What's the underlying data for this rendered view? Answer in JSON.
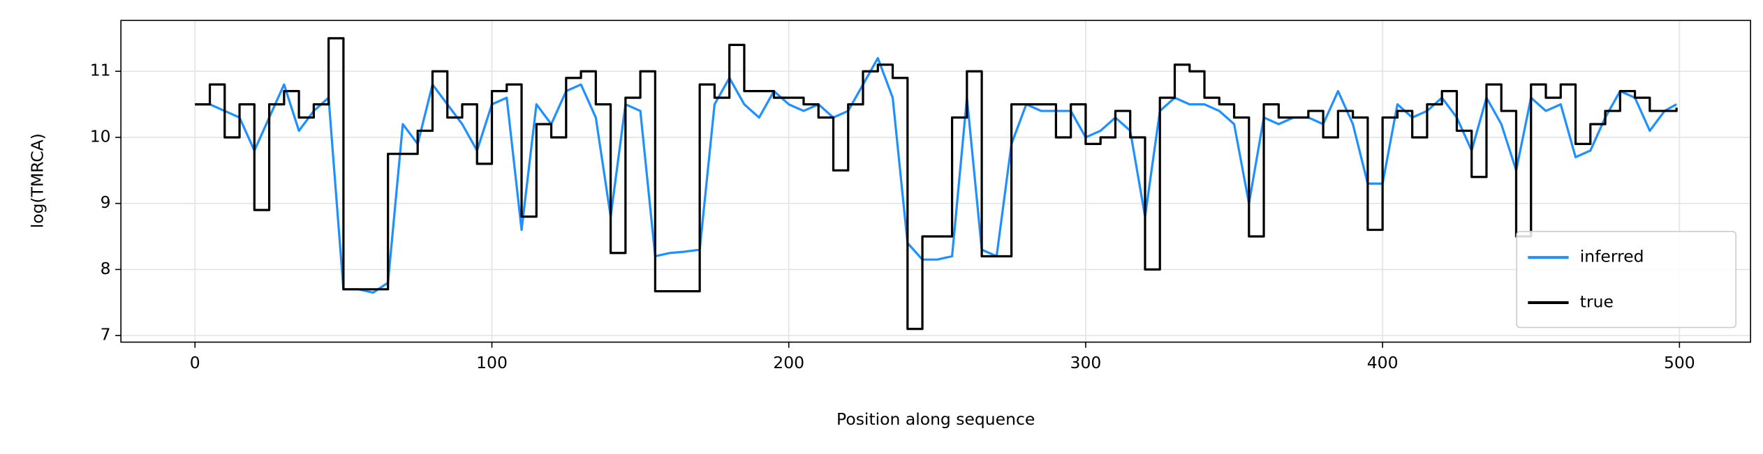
{
  "chart_data": {
    "type": "line",
    "x_label": "Position along sequence",
    "y_label": "log(TMRCA)",
    "xlim": [
      -24.95,
      523.95
    ],
    "ylim": [
      6.9,
      11.77
    ],
    "xticks": [
      0,
      100,
      200,
      300,
      400,
      500
    ],
    "yticks": [
      7,
      8,
      9,
      10,
      11
    ],
    "grid": true,
    "legend": "lower right",
    "x": [
      0,
      5,
      10,
      15,
      20,
      25,
      30,
      35,
      40,
      45,
      50,
      55,
      60,
      65,
      70,
      75,
      80,
      85,
      90,
      95,
      100,
      105,
      110,
      115,
      120,
      125,
      130,
      135,
      140,
      145,
      150,
      155,
      160,
      165,
      170,
      175,
      180,
      185,
      190,
      195,
      200,
      205,
      210,
      215,
      220,
      225,
      230,
      235,
      240,
      245,
      250,
      255,
      260,
      265,
      270,
      275,
      280,
      285,
      290,
      295,
      300,
      305,
      310,
      315,
      320,
      325,
      330,
      335,
      340,
      345,
      350,
      355,
      360,
      365,
      370,
      375,
      380,
      385,
      390,
      395,
      400,
      405,
      410,
      415,
      420,
      425,
      430,
      435,
      440,
      445,
      450,
      455,
      460,
      465,
      470,
      475,
      480,
      485,
      490,
      495,
      499
    ],
    "series": [
      {
        "name": "inferred",
        "color": "#1e90ff",
        "drawstyle": "default",
        "values": [
          10.5,
          10.5,
          10.4,
          10.3,
          9.8,
          10.3,
          10.8,
          10.1,
          10.4,
          10.6,
          7.7,
          7.7,
          7.65,
          7.8,
          10.2,
          9.9,
          10.8,
          10.5,
          10.2,
          9.8,
          10.5,
          10.6,
          8.6,
          10.5,
          10.2,
          10.7,
          10.8,
          10.3,
          8.8,
          10.5,
          10.4,
          8.2,
          8.25,
          8.27,
          8.3,
          10.5,
          10.9,
          10.5,
          10.3,
          10.7,
          10.5,
          10.4,
          10.5,
          10.3,
          10.4,
          10.8,
          11.2,
          10.6,
          8.4,
          8.15,
          8.15,
          8.2,
          10.6,
          8.3,
          8.2,
          9.9,
          10.5,
          10.4,
          10.4,
          10.4,
          10.0,
          10.1,
          10.3,
          10.1,
          8.8,
          10.4,
          10.6,
          10.5,
          10.5,
          10.4,
          10.2,
          9.0,
          10.3,
          10.2,
          10.3,
          10.3,
          10.2,
          10.7,
          10.2,
          9.3,
          9.3,
          10.5,
          10.3,
          10.4,
          10.6,
          10.3,
          9.8,
          10.6,
          10.2,
          9.5,
          10.6,
          10.4,
          10.5,
          9.7,
          9.8,
          10.3,
          10.7,
          10.6,
          10.1,
          10.4,
          10.5
        ]
      },
      {
        "name": "true",
        "color": "#000000",
        "drawstyle": "steps-post",
        "values": [
          10.5,
          10.8,
          10.0,
          10.5,
          8.9,
          10.5,
          10.7,
          10.3,
          10.5,
          11.5,
          7.7,
          7.7,
          7.7,
          9.75,
          9.75,
          10.1,
          11.0,
          10.3,
          10.5,
          9.6,
          10.7,
          10.8,
          8.8,
          10.2,
          10.0,
          10.9,
          11.0,
          10.5,
          8.25,
          10.6,
          11.0,
          7.67,
          7.67,
          7.67,
          10.8,
          10.6,
          11.4,
          10.7,
          10.7,
          10.6,
          10.6,
          10.5,
          10.3,
          9.5,
          10.5,
          11.0,
          11.1,
          10.9,
          7.1,
          8.5,
          8.5,
          10.3,
          11.0,
          8.2,
          8.2,
          10.5,
          10.5,
          10.5,
          10.0,
          10.5,
          9.9,
          10.0,
          10.4,
          10.0,
          8.0,
          10.6,
          11.1,
          11.0,
          10.6,
          10.5,
          10.3,
          8.5,
          10.5,
          10.3,
          10.3,
          10.4,
          10.0,
          10.4,
          10.3,
          8.6,
          10.3,
          10.4,
          10.0,
          10.5,
          10.7,
          10.1,
          9.4,
          10.8,
          10.4,
          8.5,
          10.8,
          10.6,
          10.8,
          9.9,
          10.2,
          10.4,
          10.7,
          10.6,
          10.4,
          10.4,
          10.45
        ]
      }
    ]
  }
}
